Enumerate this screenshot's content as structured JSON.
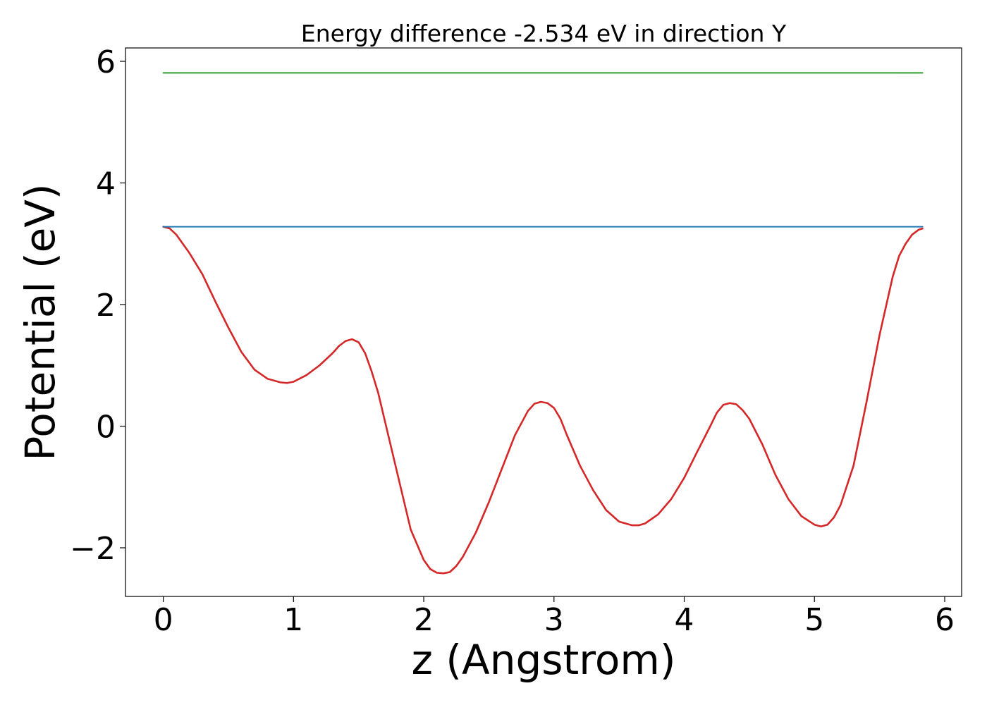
{
  "chart_data": {
    "type": "line",
    "title": "Energy difference -2.534 eV in direction Y",
    "xlabel": "z (Angstrom)",
    "ylabel": "Potential (eV)",
    "xlim": [
      -0.29,
      6.13
    ],
    "ylim": [
      -2.8,
      6.22
    ],
    "xticks": [
      0,
      1,
      2,
      3,
      4,
      5,
      6
    ],
    "yticks": [
      -2,
      0,
      2,
      4,
      6
    ],
    "xtick_labels": [
      "0",
      "1",
      "2",
      "3",
      "4",
      "5",
      "6"
    ],
    "ytick_labels": [
      "−2",
      "0",
      "2",
      "4",
      "6"
    ],
    "grid": false,
    "series": [
      {
        "color": "#d62728",
        "x": [
          0.0,
          0.05,
          0.1,
          0.15,
          0.2,
          0.3,
          0.4,
          0.5,
          0.6,
          0.7,
          0.8,
          0.9,
          0.95,
          1.0,
          1.1,
          1.2,
          1.3,
          1.35,
          1.4,
          1.45,
          1.5,
          1.55,
          1.6,
          1.65,
          1.7,
          1.8,
          1.9,
          2.0,
          2.05,
          2.1,
          2.15,
          2.2,
          2.25,
          2.3,
          2.4,
          2.5,
          2.6,
          2.7,
          2.8,
          2.85,
          2.9,
          2.95,
          3.0,
          3.05,
          3.1,
          3.2,
          3.3,
          3.4,
          3.5,
          3.6,
          3.65,
          3.7,
          3.8,
          3.9,
          4.0,
          4.1,
          4.2,
          4.25,
          4.3,
          4.35,
          4.4,
          4.45,
          4.5,
          4.6,
          4.7,
          4.8,
          4.9,
          5.0,
          5.05,
          5.1,
          5.15,
          5.2,
          5.3,
          5.4,
          5.5,
          5.6,
          5.65,
          5.7,
          5.75,
          5.8,
          5.83
        ],
        "y": [
          3.28,
          3.25,
          3.15,
          3.0,
          2.85,
          2.5,
          2.05,
          1.62,
          1.22,
          0.93,
          0.78,
          0.72,
          0.71,
          0.73,
          0.84,
          1.0,
          1.2,
          1.32,
          1.4,
          1.43,
          1.38,
          1.2,
          0.9,
          0.55,
          0.1,
          -0.8,
          -1.7,
          -2.2,
          -2.35,
          -2.41,
          -2.42,
          -2.4,
          -2.3,
          -2.15,
          -1.75,
          -1.25,
          -0.7,
          -0.15,
          0.25,
          0.37,
          0.4,
          0.38,
          0.3,
          0.12,
          -0.15,
          -0.65,
          -1.05,
          -1.38,
          -1.57,
          -1.63,
          -1.63,
          -1.6,
          -1.45,
          -1.2,
          -0.85,
          -0.42,
          0.0,
          0.22,
          0.35,
          0.38,
          0.36,
          0.26,
          0.12,
          -0.3,
          -0.8,
          -1.2,
          -1.48,
          -1.62,
          -1.65,
          -1.62,
          -1.5,
          -1.3,
          -0.65,
          0.4,
          1.5,
          2.45,
          2.8,
          3.0,
          3.15,
          3.23,
          3.25
        ]
      },
      {
        "color": "#1f77b4",
        "x": [
          0.0,
          5.83
        ],
        "y": [
          3.28,
          3.28
        ]
      },
      {
        "color": "#2ca02c",
        "x": [
          0.0,
          5.83
        ],
        "y": [
          5.81,
          5.81
        ]
      }
    ]
  }
}
